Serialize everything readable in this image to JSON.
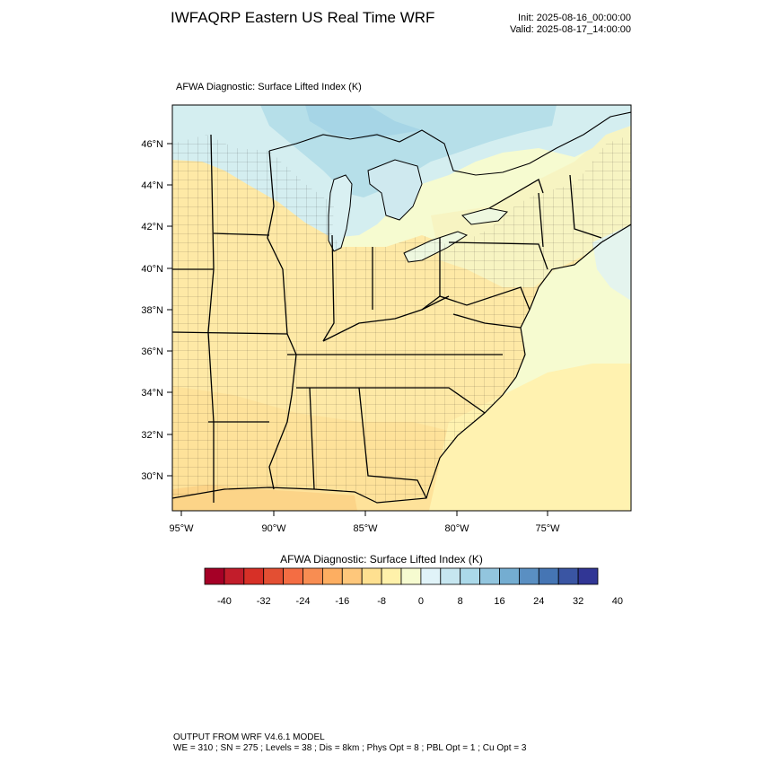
{
  "header": {
    "title": "IWFAQRP Eastern US Real Time WRF",
    "init": "Init: 2025-08-16_00:00:00",
    "valid": "Valid: 2025-08-17_14:00:00"
  },
  "map": {
    "subtitle": "AFWA Diagnostic: Surface Lifted Index   (K)",
    "lat_labels": [
      "46°N",
      "44°N",
      "42°N",
      "40°N",
      "38°N",
      "36°N",
      "34°N",
      "32°N",
      "30°N"
    ],
    "lon_labels": [
      "95°W",
      "90°W",
      "85°W",
      "80°W",
      "75°W"
    ]
  },
  "colorbar": {
    "title": "AFWA Diagnostic: Surface Lifted Index  (K)",
    "tick_labels": [
      "-40",
      "-32",
      "-24",
      "-16",
      "-8",
      "0",
      "8",
      "16",
      "24",
      "32",
      "40"
    ],
    "colors": [
      "#a50026",
      "#c21d2b",
      "#d73027",
      "#e34f33",
      "#f46d43",
      "#f88d52",
      "#fdae61",
      "#fec77b",
      "#fee090",
      "#fff1aa",
      "#f6fbd0",
      "#e0f3f8",
      "#c6e6f0",
      "#abd9e9",
      "#92c5de",
      "#74add1",
      "#5a8fc2",
      "#4575b4",
      "#3a55a3",
      "#313695"
    ]
  },
  "footer": {
    "line1": "OUTPUT FROM WRF V4.6.1 MODEL",
    "line2": "WE = 310 ; SN = 275 ; Levels = 38 ; Dis = 8km ; Phys Opt = 8 ; PBL Opt = 1 ; Cu Opt = 3"
  }
}
